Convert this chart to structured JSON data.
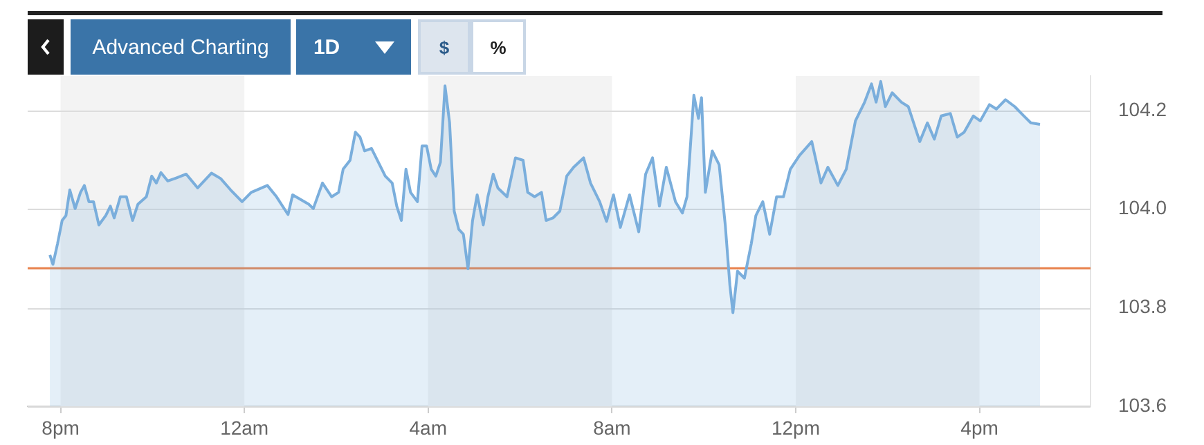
{
  "chart_data": {
    "type": "area",
    "color": "#7aaedc",
    "annotations": [
      "Advanced Charting",
      "1D",
      "$",
      "%"
    ],
    "x": [
      "--01-01T19:46",
      "--01-01T19:50",
      "--01-01T19:56",
      "--01-01T20:02",
      "--01-01T20:07",
      "--01-01T20:12",
      "--01-01T20:19",
      "--01-01T20:26",
      "--01-01T20:31",
      "--01-01T20:37",
      "--01-01T20:43",
      "--01-01T20:50",
      "--01-01T20:59",
      "--01-01T21:05",
      "--01-01T21:10",
      "--01-01T21:18",
      "--01-01T21:26",
      "--01-01T21:34",
      "--01-01T21:41",
      "--01-01T21:52",
      "--01-01T21:59",
      "--01-01T22:05",
      "--01-01T22:11",
      "--01-01T22:20",
      "--01-01T22:29",
      "--01-01T22:44",
      "--01-01T22:59",
      "--01-01T23:17",
      "--01-01T23:29",
      "--01-01T23:42",
      "--01-01T23:57",
      "--01-02T00:09",
      "--01-02T00:30",
      "--01-02T00:42",
      "--01-02T00:57",
      "--01-02T01:03",
      "--01-02T01:24",
      "--01-02T01:30",
      "--01-02T01:42",
      "--01-02T01:54",
      "--01-02T02:03",
      "--01-02T02:09",
      "--01-02T02:18",
      "--01-02T02:25",
      "--01-02T02:31",
      "--01-02T02:37",
      "--01-02T02:46",
      "--01-02T02:55",
      "--01-02T03:04",
      "--01-02T03:13",
      "--01-02T03:19",
      "--01-02T03:25",
      "--01-02T03:31",
      "--01-02T03:37",
      "--01-02T03:46",
      "--01-02T03:52",
      "--01-02T03:58",
      "--01-02T04:04",
      "--01-02T04:10",
      "--01-02T04:16",
      "--01-02T04:22",
      "--01-02T04:28",
      "--01-02T04:34",
      "--01-02T04:40",
      "--01-02T04:46",
      "--01-02T04:52",
      "--01-02T04:58",
      "--01-02T05:04",
      "--01-02T05:12",
      "--01-02T05:18",
      "--01-02T05:25",
      "--01-02T05:31",
      "--01-02T05:43",
      "--01-02T05:54",
      "--01-02T06:04",
      "--01-02T06:10",
      "--01-02T06:19",
      "--01-02T06:28",
      "--01-02T06:34",
      "--01-02T06:43",
      "--01-02T06:52",
      "--01-02T07:01",
      "--01-02T07:10",
      "--01-02T07:23",
      "--01-02T07:32",
      "--01-02T07:44",
      "--01-02T07:53",
      "--01-02T08:02",
      "--01-02T08:11",
      "--01-02T08:23",
      "--01-02T08:35",
      "--01-02T08:44",
      "--01-02T08:53",
      "--01-02T09:02",
      "--01-02T09:11",
      "--01-02T09:23",
      "--01-02T09:32",
      "--01-02T09:38",
      "--01-02T09:47",
      "--01-02T09:53",
      "--01-02T09:57",
      "--01-02T10:02",
      "--01-02T10:11",
      "--01-02T10:20",
      "--01-02T10:28",
      "--01-02T10:34",
      "--01-02T10:38",
      "--01-02T10:44",
      "--01-02T10:53",
      "--01-02T11:02",
      "--01-02T11:08",
      "--01-02T11:17",
      "--01-02T11:26",
      "--01-02T11:35",
      "--01-02T11:44",
      "--01-02T11:53",
      "--01-02T12:05",
      "--01-02T12:21",
      "--01-02T12:33",
      "--01-02T12:42",
      "--01-02T12:55",
      "--01-02T13:06",
      "--01-02T13:18",
      "--01-02T13:30",
      "--01-02T13:39",
      "--01-02T13:45",
      "--01-02T13:51",
      "--01-02T13:57",
      "--01-02T14:06",
      "--01-02T14:18",
      "--01-02T14:27",
      "--01-02T14:42",
      "--01-02T14:52",
      "--01-02T15:01",
      "--01-02T15:10",
      "--01-02T15:22",
      "--01-02T15:31",
      "--01-02T15:40",
      "--01-02T15:52",
      "--01-02T16:01",
      "--01-02T16:13",
      "--01-02T16:22",
      "--01-02T16:34",
      "--01-02T16:46",
      "--01-02T16:58",
      "--01-02T17:07",
      "--01-02T17:19"
    ],
    "values": [
      103.907,
      103.888,
      103.93,
      103.977,
      103.987,
      104.039,
      104.001,
      104.034,
      104.048,
      104.015,
      104.015,
      103.968,
      103.987,
      104.006,
      103.982,
      104.025,
      104.025,
      103.977,
      104.01,
      104.025,
      104.067,
      104.053,
      104.074,
      104.057,
      104.062,
      104.071,
      104.043,
      104.073,
      104.062,
      104.039,
      104.015,
      104.034,
      104.048,
      104.025,
      103.989,
      104.029,
      104.01,
      104.001,
      104.053,
      104.025,
      104.034,
      104.081,
      104.099,
      104.156,
      104.146,
      104.118,
      104.123,
      104.095,
      104.067,
      104.053,
      104.006,
      103.977,
      104.081,
      104.034,
      104.015,
      104.128,
      104.128,
      104.081,
      104.067,
      104.095,
      104.25,
      104.175,
      103.996,
      103.959,
      103.949,
      103.879,
      103.977,
      104.029,
      103.968,
      104.025,
      104.071,
      104.043,
      104.025,
      104.104,
      104.099,
      104.034,
      104.025,
      104.034,
      103.977,
      103.982,
      103.996,
      104.067,
      104.085,
      104.104,
      104.053,
      104.015,
      103.975,
      104.029,
      103.963,
      104.029,
      103.954,
      104.071,
      104.104,
      104.006,
      104.085,
      104.015,
      103.992,
      104.025,
      104.231,
      104.184,
      104.226,
      104.034,
      104.118,
      104.09,
      103.968,
      103.846,
      103.79,
      103.874,
      103.86,
      103.93,
      103.987,
      104.015,
      103.949,
      104.025,
      104.025,
      104.081,
      104.109,
      104.137,
      104.053,
      104.085,
      104.048,
      104.081,
      104.179,
      104.217,
      104.254,
      104.217,
      104.259,
      104.208,
      104.236,
      104.217,
      104.208,
      104.137,
      104.175,
      104.142,
      104.189,
      104.194,
      104.146,
      104.156,
      104.189,
      104.179,
      104.212,
      104.203,
      104.222,
      104.208,
      104.189,
      104.175,
      104.172
    ],
    "xlim": [
      "--01-01T19:17",
      "--01-02T18:25"
    ],
    "xticks": [
      {
        "value": "--01-01T20:00",
        "label": "8pm"
      },
      {
        "value": "--01-02T00:00",
        "label": "12am"
      },
      {
        "value": "--01-02T04:00",
        "label": "4am"
      },
      {
        "value": "--01-02T08:00",
        "label": "8am"
      },
      {
        "value": "--01-02T12:00",
        "label": "12pm"
      },
      {
        "value": "--01-02T16:00",
        "label": "4pm"
      }
    ],
    "ylim": [
      103.6,
      104.27
    ],
    "yticks": [
      {
        "value": 103.6,
        "label": "103.6"
      },
      {
        "value": 103.8,
        "label": "103.8"
      },
      {
        "value": 104.0,
        "label": "104.0"
      },
      {
        "value": 104.2,
        "label": "104.2"
      }
    ],
    "grid": "y",
    "ref_lines": [
      {
        "axis": "y",
        "value": 103.88,
        "color": "#e8804a"
      }
    ],
    "bands": [
      {
        "axis": "x",
        "from": "--01-01T20:00",
        "to": "--01-02T00:00",
        "color": "#f3f3f3"
      },
      {
        "axis": "x",
        "from": "--01-02T04:00",
        "to": "--01-02T08:00",
        "color": "#f3f3f3"
      },
      {
        "axis": "x",
        "from": "--01-02T12:00",
        "to": "--01-02T16:00",
        "color": "#f3f3f3"
      }
    ]
  }
}
